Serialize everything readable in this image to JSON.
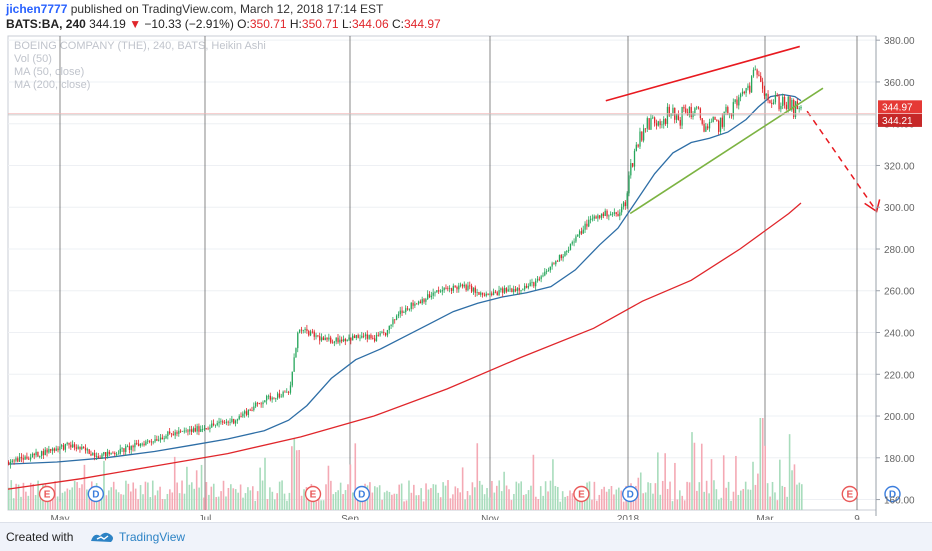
{
  "header": {
    "user": "jichen7777",
    "published_text": "published on TradingView.com, March 12, 2018 17:14 EST",
    "symbol": "BATS:BA, 240",
    "last": "344.19",
    "change": "−10.33 (−2.91%)",
    "o_label": "O:",
    "o_value": "350.71",
    "h_label": "H:",
    "h_value": "350.71",
    "l_label": "L:",
    "l_value": "344.06",
    "c_label": "C:",
    "c_value": "344.97"
  },
  "footer": {
    "created_with": "Created with",
    "brand": "TradingView"
  },
  "colors": {
    "up": "#26a65b",
    "down": "#e0262b",
    "ma50": "#2e6ea6",
    "ma200": "#e0262b",
    "vol_up": "#a8dcbc",
    "vol_down": "#f4a9b4",
    "trend_green": "#7cb342",
    "badge_blue": "#3b7ddd",
    "badge_red": "#e95959"
  },
  "chart_data": {
    "type": "candlestick",
    "legend": [
      "BOEING COMPANY (THE), 240, BATS, Heikin Ashi",
      "Vol (50)",
      "MA (50, close)",
      "MA (200, close)"
    ],
    "y_axis": {
      "ticks": [
        "380.00",
        "360.00",
        "340.00",
        "320.00",
        "300.00",
        "280.00",
        "260.00",
        "240.00",
        "220.00",
        "200.00",
        "180.00",
        "160.00"
      ],
      "range": [
        155,
        382
      ]
    },
    "x_axis": {
      "ticks": [
        "May",
        "Jul",
        "Sep",
        "Nov",
        "2018",
        "Mar",
        "9"
      ]
    },
    "price_labels": [
      {
        "value": 344.97,
        "text": "344.97"
      },
      {
        "value": 344.21,
        "text": "344.21"
      }
    ],
    "price_path": [
      [
        0,
        178
      ],
      [
        20,
        181
      ],
      [
        35,
        184
      ],
      [
        50,
        186
      ],
      [
        60,
        184
      ],
      [
        75,
        181
      ],
      [
        90,
        183
      ],
      [
        110,
        187
      ],
      [
        130,
        191
      ],
      [
        150,
        193
      ],
      [
        170,
        196
      ],
      [
        185,
        198
      ],
      [
        200,
        204
      ],
      [
        210,
        208
      ],
      [
        220,
        210
      ],
      [
        230,
        211
      ],
      [
        235,
        231
      ],
      [
        237,
        241
      ],
      [
        245,
        240
      ],
      [
        260,
        236
      ],
      [
        275,
        237
      ],
      [
        290,
        238
      ],
      [
        300,
        237
      ],
      [
        310,
        240
      ],
      [
        320,
        250
      ],
      [
        330,
        253
      ],
      [
        340,
        256
      ],
      [
        350,
        259
      ],
      [
        360,
        261
      ],
      [
        370,
        262
      ],
      [
        380,
        261
      ],
      [
        385,
        258
      ],
      [
        395,
        258
      ],
      [
        405,
        260
      ],
      [
        415,
        261
      ],
      [
        425,
        262
      ],
      [
        435,
        265
      ],
      [
        445,
        272
      ],
      [
        455,
        278
      ],
      [
        465,
        285
      ],
      [
        475,
        293
      ],
      [
        480,
        295
      ],
      [
        490,
        297
      ],
      [
        495,
        297
      ],
      [
        500,
        296
      ],
      [
        505,
        303
      ],
      [
        512,
        325
      ],
      [
        520,
        338
      ],
      [
        530,
        342
      ],
      [
        540,
        344
      ],
      [
        550,
        343
      ],
      [
        557,
        347
      ],
      [
        565,
        344
      ],
      [
        573,
        338
      ],
      [
        583,
        340
      ],
      [
        592,
        347
      ],
      [
        600,
        352
      ],
      [
        610,
        361
      ],
      [
        615,
        367
      ],
      [
        618,
        360
      ],
      [
        625,
        350
      ],
      [
        635,
        351
      ],
      [
        642,
        347
      ],
      [
        650,
        345
      ]
    ],
    "ma50_path": [
      [
        0,
        177
      ],
      [
        40,
        178
      ],
      [
        80,
        180
      ],
      [
        120,
        183
      ],
      [
        150,
        186
      ],
      [
        180,
        189
      ],
      [
        210,
        193
      ],
      [
        230,
        198
      ],
      [
        245,
        205
      ],
      [
        265,
        218
      ],
      [
        285,
        227
      ],
      [
        305,
        232
      ],
      [
        325,
        238
      ],
      [
        345,
        244
      ],
      [
        365,
        250
      ],
      [
        385,
        254
      ],
      [
        405,
        257
      ],
      [
        425,
        259
      ],
      [
        445,
        262
      ],
      [
        465,
        270
      ],
      [
        485,
        282
      ],
      [
        500,
        290
      ],
      [
        515,
        303
      ],
      [
        530,
        316
      ],
      [
        545,
        326
      ],
      [
        560,
        331
      ],
      [
        575,
        333
      ],
      [
        590,
        336
      ],
      [
        605,
        342
      ],
      [
        615,
        348
      ],
      [
        625,
        353
      ],
      [
        635,
        354
      ],
      [
        645,
        353
      ],
      [
        650,
        351
      ]
    ],
    "ma200_path": [
      [
        0,
        165
      ],
      [
        60,
        170
      ],
      [
        120,
        176
      ],
      [
        180,
        182
      ],
      [
        240,
        190
      ],
      [
        300,
        200
      ],
      [
        360,
        213
      ],
      [
        420,
        228
      ],
      [
        480,
        242
      ],
      [
        520,
        255
      ],
      [
        560,
        265
      ],
      [
        600,
        280
      ],
      [
        640,
        297
      ],
      [
        650,
        302
      ]
    ],
    "annotations": [
      {
        "type": "line",
        "color": "red",
        "from": [
          490,
          351
        ],
        "to": [
          649,
          377
        ]
      },
      {
        "type": "line",
        "color": "green",
        "from": [
          510,
          297
        ],
        "to": [
          668,
          357
        ]
      },
      {
        "type": "dashed-arrow",
        "color": "red",
        "from": [
          655,
          346
        ],
        "to": [
          712,
          298
        ]
      }
    ],
    "events": [
      {
        "label": "E",
        "x": 32
      },
      {
        "label": "D",
        "x": 72
      },
      {
        "label": "E",
        "x": 250
      },
      {
        "label": "D",
        "x": 290
      },
      {
        "label": "E",
        "x": 470
      },
      {
        "label": "D",
        "x": 510
      },
      {
        "label": "E",
        "x": 690
      },
      {
        "label": "D",
        "x": 725
      }
    ]
  }
}
